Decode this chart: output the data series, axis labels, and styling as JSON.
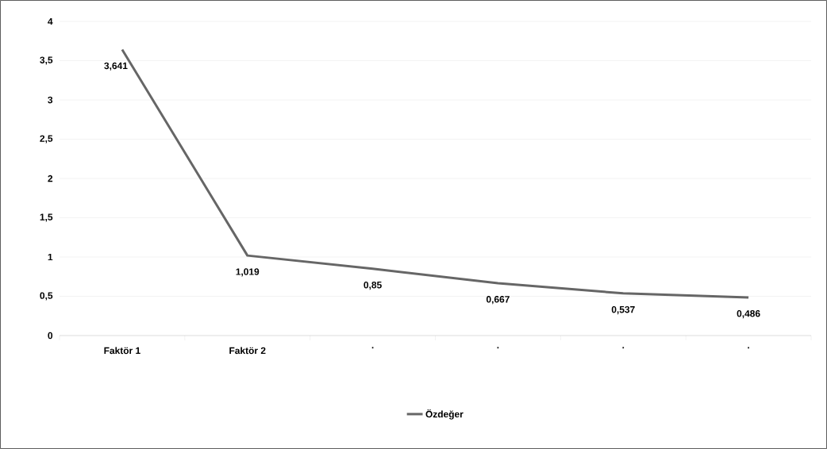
{
  "chart_data": {
    "type": "line",
    "categories": [
      "Faktör 1",
      "Faktör 2",
      ".",
      ".",
      ".",
      "."
    ],
    "series": [
      {
        "name": "Özdeğer",
        "color": "#666666",
        "values": [
          3.641,
          1.019,
          0.85,
          0.667,
          0.537,
          0.486
        ],
        "value_labels": [
          "3,641",
          "1,019",
          "0,85",
          "0,667",
          "0,537",
          "0,486"
        ]
      }
    ],
    "ylim": [
      0,
      4
    ],
    "yticks": [
      0,
      {
        "value": 0.5,
        "label": "0,5"
      },
      1,
      {
        "value": 1.5,
        "label": "1,5"
      },
      2,
      {
        "value": 2.5,
        "label": "2,5"
      },
      3,
      {
        "value": 3.5,
        "label": "3,5"
      },
      4
    ],
    "grid": "y",
    "legend": "bottom",
    "marker": "none",
    "line_style": "solid"
  }
}
